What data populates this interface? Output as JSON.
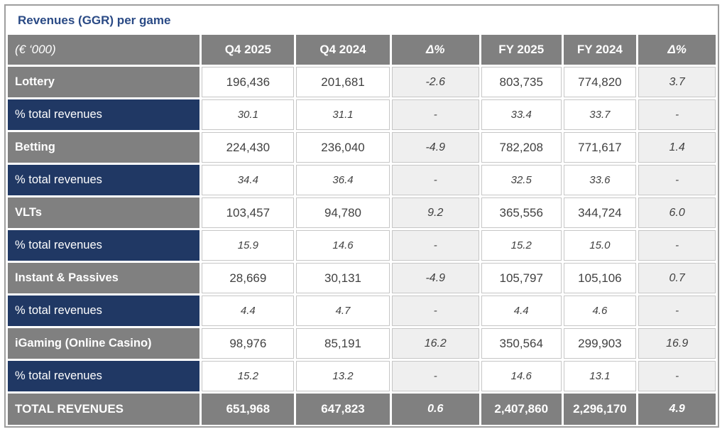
{
  "page_title": "Revenues (GGR) per game",
  "colors": {
    "title_text": "#2A4A85",
    "header_gray": "#808080",
    "navy_row_bg": "#203864",
    "delta_column_bg": "#EFEFEF",
    "cell_border": "#C6C6C6",
    "frame_border": "#9E9E9E",
    "value_text": "#414141",
    "cell_bg": "#FFFFFF"
  },
  "chart_data": {
    "type": "table",
    "title": "Revenues (GGR) per game",
    "unit_label": "(€ ‘000)",
    "columns": [
      "Q4 2025",
      "Q4 2024",
      "Δ%",
      "FY 2025",
      "FY 2024",
      "Δ%"
    ],
    "rows": [
      {
        "type": "game",
        "label": "Lottery",
        "values": [
          "196,436",
          "201,681",
          "-2.6",
          "803,735",
          "774,820",
          "3.7"
        ]
      },
      {
        "type": "pct",
        "label": "% total revenues",
        "values": [
          "30.1",
          "31.1",
          "-",
          "33.4",
          "33.7",
          "-"
        ]
      },
      {
        "type": "game",
        "label": "Betting",
        "values": [
          "224,430",
          "236,040",
          "-4.9",
          "782,208",
          "771,617",
          "1.4"
        ]
      },
      {
        "type": "pct",
        "label": "% total revenues",
        "values": [
          "34.4",
          "36.4",
          "-",
          "32.5",
          "33.6",
          "-"
        ]
      },
      {
        "type": "game",
        "label": "VLTs",
        "values": [
          "103,457",
          "94,780",
          "9.2",
          "365,556",
          "344,724",
          "6.0"
        ]
      },
      {
        "type": "pct",
        "label": "% total revenues",
        "values": [
          "15.9",
          "14.6",
          "-",
          "15.2",
          "15.0",
          "-"
        ]
      },
      {
        "type": "game",
        "label": "Instant & Passives",
        "values": [
          "28,669",
          "30,131",
          "-4.9",
          "105,797",
          "105,106",
          "0.7"
        ]
      },
      {
        "type": "pct",
        "label": "% total revenues",
        "values": [
          "4.4",
          "4.7",
          "-",
          "4.4",
          "4.6",
          "-"
        ]
      },
      {
        "type": "game",
        "label": "iGaming (Online Casino)",
        "values": [
          "98,976",
          "85,191",
          "16.2",
          "350,564",
          "299,903",
          "16.9"
        ]
      },
      {
        "type": "pct",
        "label": "% total revenues",
        "values": [
          "15.2",
          "13.2",
          "-",
          "14.6",
          "13.1",
          "-"
        ]
      }
    ],
    "total_row": {
      "label": "TOTAL REVENUES",
      "values": [
        "651,968",
        "647,823",
        "0.6",
        "2,407,860",
        "2,296,170",
        "4.9"
      ]
    }
  }
}
